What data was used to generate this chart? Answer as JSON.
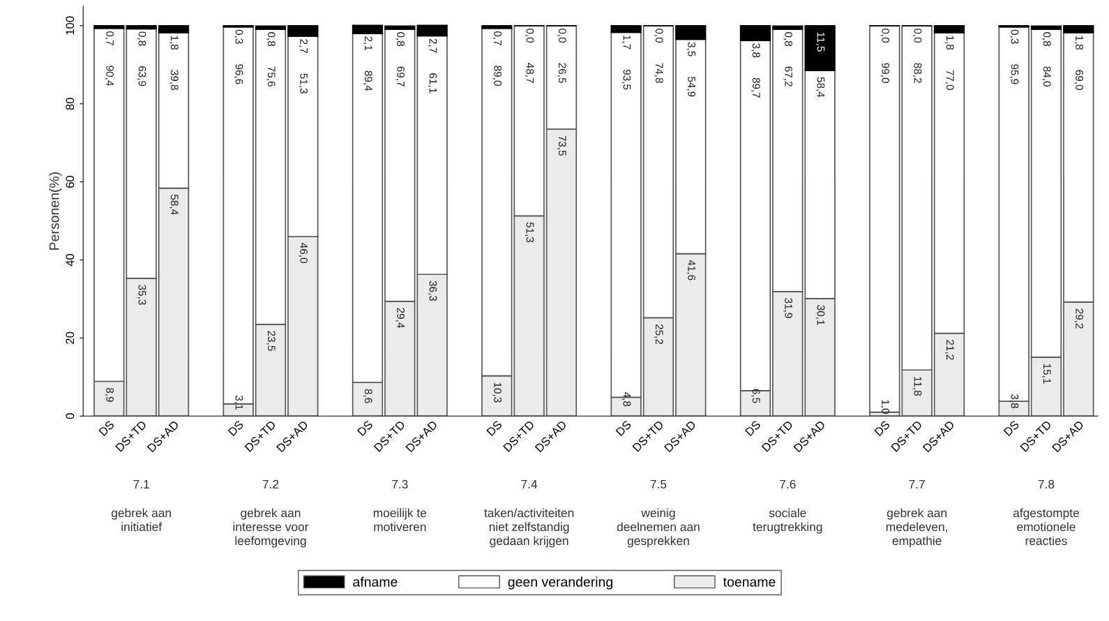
{
  "chart_data": {
    "type": "bar",
    "stacked": true,
    "ylabel": "Personen(%)",
    "ylim": [
      0,
      105
    ],
    "yticks": [
      0,
      20,
      40,
      60,
      80,
      100
    ],
    "grid": false,
    "legend": "bottom",
    "categories": [
      "DS",
      "DS+TD",
      "DS+AD",
      null,
      "DS",
      "DS+TD",
      "DS+AD",
      null,
      "DS",
      "DS+TD",
      "DS+AD",
      null,
      "DS",
      "DS+TD",
      "DS+AD",
      null,
      "DS",
      "DS+TD",
      "DS+AD",
      null,
      "DS",
      "DS+TD",
      "DS+AD",
      null,
      "DS",
      "DS+TD",
      "DS+AD",
      null,
      "DS",
      "DS+TD",
      "DS+AD"
    ],
    "series": [
      {
        "name": "toename",
        "color": "#ebebeb",
        "values": [
          8.9,
          35.3,
          58.4,
          null,
          3.1,
          23.5,
          46.0,
          null,
          8.6,
          29.4,
          36.3,
          null,
          10.3,
          51.3,
          73.5,
          null,
          4.8,
          25.2,
          41.6,
          null,
          6.5,
          31.9,
          30.1,
          null,
          1.0,
          11.8,
          21.2,
          null,
          3.8,
          15.1,
          29.2
        ],
        "value_labels": [
          "8,9",
          "35,3",
          "58,4",
          null,
          "3,1",
          "23,5",
          "46,0",
          null,
          "8,6",
          "29,4",
          "36,3",
          null,
          "10,3",
          "51,3",
          "73,5",
          null,
          "4,8",
          "25,2",
          "41,6",
          null,
          "6,5",
          "31,9",
          "30,1",
          null,
          "1,0",
          "11,8",
          "21,2",
          null,
          "3,8",
          "15,1",
          "29,2"
        ]
      },
      {
        "name": "geen verandering",
        "color": "#ffffff",
        "values": [
          90.4,
          63.9,
          39.8,
          null,
          96.6,
          75.6,
          51.3,
          null,
          89.4,
          69.7,
          61.1,
          null,
          89.0,
          48.7,
          26.5,
          null,
          93.5,
          74.8,
          54.9,
          null,
          89.7,
          67.2,
          58.4,
          null,
          99.0,
          88.2,
          77.0,
          null,
          95.9,
          84.0,
          69.0
        ],
        "value_labels": [
          "90,4",
          "63,9",
          "39,8",
          null,
          "96,6",
          "75,6",
          "51,3",
          null,
          "89,4",
          "69,7",
          "61,1",
          null,
          "89,0",
          "48,7",
          "26,5",
          null,
          "93,5",
          "74,8",
          "54,9",
          null,
          "89,7",
          "67,2",
          "58,4",
          null,
          "99,0",
          "88,2",
          "77,0",
          null,
          "95,9",
          "84,0",
          "69,0"
        ]
      },
      {
        "name": "afname",
        "color": "#000000",
        "values": [
          0.7,
          0.8,
          1.8,
          null,
          0.3,
          0.8,
          2.7,
          null,
          2.1,
          0.8,
          2.7,
          null,
          0.7,
          0.0,
          0.0,
          null,
          1.7,
          0.0,
          3.5,
          null,
          3.8,
          0.8,
          11.5,
          null,
          0.0,
          0.0,
          1.8,
          null,
          0.3,
          0.8,
          1.8
        ],
        "value_labels": [
          "0,7",
          "0,8",
          "1,8",
          null,
          "0,3",
          "0,8",
          "2,7",
          null,
          "2,1",
          "0,8",
          "2,7",
          null,
          "0,7",
          "0,0",
          "0,0",
          null,
          "1,7",
          "0,0",
          "3,5",
          null,
          "3,8",
          "0,8",
          "11,5",
          null,
          "0,0",
          "0,0",
          "1,8",
          null,
          "0,3",
          "0,8",
          "1,8"
        ]
      }
    ],
    "annotations": [
      "7.1",
      "7.2",
      "7.3",
      "7.4",
      "7.5",
      "7.6",
      "7.7",
      "7.8",
      "gebrek aan\ninitiatief",
      "gebrek aan\ninteresse voor\nleefomgeving",
      "moeilijk te\nmotiveren",
      "taken/activiteiten\nniet zelfstandig\ngedaan krijgen",
      "weinig\ndeelnemen aan\ngesprekken",
      "sociale\nterugtrekking",
      "gebrek aan\nmedeleven,\nempathie",
      "afgestompte\nemotionele\nreacties"
    ]
  }
}
